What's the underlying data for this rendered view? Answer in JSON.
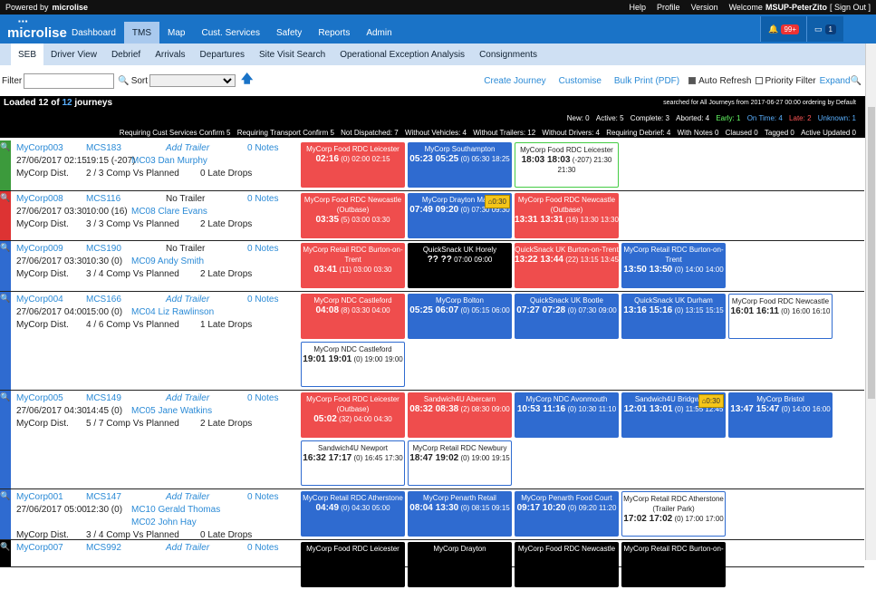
{
  "topbar": {
    "powered": "Powered by",
    "brand_small": "microlise",
    "help": "Help",
    "profile": "Profile",
    "version": "Version",
    "welcome": "Welcome",
    "user": "MSUP-PeterZito",
    "signout": "[ Sign Out ]"
  },
  "nav": {
    "brand": "microlise",
    "tabs": [
      "Dashboard",
      "TMS",
      "Map",
      "Cust. Services",
      "Safety",
      "Reports",
      "Admin"
    ],
    "alerts": "99+",
    "messages": "1"
  },
  "subnav": [
    "SEB",
    "Driver View",
    "Debrief",
    "Arrivals",
    "Departures",
    "Site Visit Search",
    "Operational Exception Analysis",
    "Consignments"
  ],
  "filter": {
    "label": "Filter",
    "sort": "Sort",
    "create": "Create Journey",
    "customise": "Customise",
    "bulk": "Bulk Print (PDF)",
    "auto": "Auto Refresh",
    "priority": "Priority Filter",
    "expand": "Expand"
  },
  "summary": {
    "loaded": "Loaded 12 of",
    "total": "12",
    "journeys": "journeys",
    "searched": "searched for All Journeys from 2017-06-27 00:00 ordering by Default",
    "stats": [
      "New: 0",
      "Active: 5",
      "Complete: 3",
      "Aborted: 4",
      "Early: 1",
      "On Time: 4",
      "Late: 2",
      "Unknown: 1"
    ],
    "reqs": [
      "Requiring Cust Services Confirm 5",
      "Requiring Transport Confirm 5",
      "Not Dispatched: 7",
      "Without Vehicles: 4",
      "Without Trailers: 12",
      "Without Drivers: 4",
      "Requiring Debrief: 4",
      "With Notes 0",
      "Claused 0",
      "Tagged 0",
      "Active Updated 0"
    ]
  },
  "journeys": [
    {
      "id": "MyCorp003",
      "veh": "MCS183",
      "trailer": "Add Trailer",
      "notes": "0 Notes",
      "date": "27/06/2017 02:15",
      "time": "19:15 (-207)",
      "driver": "MC03 Dan Murphy",
      "co": "MyCorp Dist.",
      "comp": "2 / 3 Comp Vs Planned",
      "drops": "0 Late Drops",
      "strip": "#3c9a3c",
      "h": 56,
      "stops": [
        {
          "c": "red",
          "n": "MyCorp Food RDC Leicester",
          "t": "02:16",
          "s": "(0) 02:00 02:15"
        },
        {
          "c": "blue",
          "n": "MyCorp Southampton",
          "t": "05:23 05:25",
          "s": "(0) 05:30 18:25"
        },
        {
          "c": "wgreen",
          "n": "MyCorp Food RDC Leicester",
          "t": "18:03 18:03",
          "s": "(-207) 21:30 21:30"
        }
      ]
    },
    {
      "id": "MyCorp008",
      "veh": "MCS116",
      "trailer": "No Trailer",
      "notes": "0 Notes",
      "date": "27/06/2017 03:30",
      "time": "10:00 (16)",
      "driver": "MC08 Clare Evans",
      "co": "MyCorp Dist.",
      "comp": "3 / 3 Comp Vs Planned",
      "drops": "2 Late Drops",
      "strip": "#d33",
      "h": 55,
      "stops": [
        {
          "c": "red",
          "n": "MyCorp Food RDC Newcastle (Outbase)",
          "t": "03:35",
          "s": "(5) 03:00 03:30"
        },
        {
          "c": "blue",
          "n": "MyCorp Drayton Manor",
          "t": "07:49 09:20",
          "s": "(0) 07:30 09:30",
          "d": "0:30"
        },
        {
          "c": "red",
          "n": "MyCorp Food RDC Newcastle (Outbase)",
          "t": "13:31 13:31",
          "s": "(16) 13:30 13:30"
        }
      ]
    },
    {
      "id": "MyCorp009",
      "veh": "MCS190",
      "trailer": "No Trailer",
      "notes": "0 Notes",
      "date": "27/06/2017 03:30",
      "time": "10:30 (0)",
      "driver": "MC09 Andy Smith",
      "co": "MyCorp Dist.",
      "comp": "3 / 4 Comp Vs Planned",
      "drops": "2 Late Drops",
      "strip": "#2f6bd0",
      "h": 56,
      "stops": [
        {
          "c": "red",
          "n": "MyCorp Retail RDC Burton-on-Trent",
          "t": "03:41",
          "s": "(11) 03:00 03:30"
        },
        {
          "c": "black",
          "n": "QuickSnack UK Horely",
          "t": "?? ??",
          "s": "07:00 09:00"
        },
        {
          "c": "red",
          "n": "QuickSnack UK Burton-on-Trent",
          "t": "13:22 13:44",
          "s": "(22) 13:15 13:45"
        },
        {
          "c": "blue",
          "n": "MyCorp Retail RDC Burton-on-Trent",
          "t": "13:50 13:50",
          "s": "(0) 14:00 14:00"
        }
      ]
    },
    {
      "id": "MyCorp004",
      "veh": "MCS166",
      "trailer": "Add Trailer",
      "notes": "0 Notes",
      "date": "27/06/2017 04:00",
      "time": "15:00 (0)",
      "driver": "MC04 Liz Rawlinson",
      "co": "MyCorp Dist.",
      "comp": "4 / 6 Comp Vs Planned",
      "drops": "1 Late Drops",
      "strip": "#2f6bd0",
      "h": 109,
      "stops": [
        {
          "c": "red",
          "n": "MyCorp NDC Castleford",
          "t": "04:08",
          "s": "(8) 03:30 04:00"
        },
        {
          "c": "blue",
          "n": "MyCorp Bolton",
          "t": "05:25 06:07",
          "s": "(0) 05:15 06:00"
        },
        {
          "c": "blue",
          "n": "QuickSnack UK Bootle",
          "t": "07:27 07:28",
          "s": "(0) 07:30 09:00"
        },
        {
          "c": "blue",
          "n": "QuickSnack UK Durham",
          "t": "13:16 15:16",
          "s": "(0) 13:15 15:15"
        },
        {
          "c": "white",
          "n": "MyCorp Food RDC Newcastle",
          "t": "16:01 16:11",
          "s": "(0) 16:00 16:10"
        },
        {
          "c": "white",
          "n": "MyCorp NDC Castleford",
          "t": "19:01 19:01",
          "s": "(0) 19:00 19:00"
        }
      ]
    },
    {
      "id": "MyCorp005",
      "veh": "MCS149",
      "trailer": "Add Trailer",
      "notes": "0 Notes",
      "date": "27/06/2017 04:30",
      "time": "14:45 (0)",
      "driver": "MC05 Jane Watkins",
      "co": "MyCorp Dist.",
      "comp": "5 / 7 Comp Vs Planned",
      "drops": "2 Late Drops",
      "strip": "#2f6bd0",
      "h": 109,
      "stops": [
        {
          "c": "red",
          "n": "MyCorp Food RDC Leicester (Outbase)",
          "t": "05:02",
          "s": "(32) 04:00 04:30"
        },
        {
          "c": "red",
          "n": "Sandwich4U Abercarn",
          "t": "08:32 08:38",
          "s": "(2) 08:30 09:00"
        },
        {
          "c": "blue",
          "n": "MyCorp NDC Avonmouth",
          "t": "10:53 11:16",
          "s": "(0) 10:30 11:10"
        },
        {
          "c": "blue",
          "n": "Sandwich4U Bridgwater",
          "t": "12:01 13:01",
          "s": "(0) 11:55 12:45",
          "d": "0:30"
        },
        {
          "c": "blue",
          "n": "MyCorp Bristol",
          "t": "13:47 15:47",
          "s": "(0) 14:00 16:00"
        },
        {
          "c": "white",
          "n": "Sandwich4U Newport",
          "t": "16:32 17:17",
          "s": "(0) 16:45 17:30"
        },
        {
          "c": "white",
          "n": "MyCorp Retail RDC Newbury",
          "t": "18:47 19:02",
          "s": "(0) 19:00 19:15"
        }
      ]
    },
    {
      "id": "MyCorp001",
      "veh": "MCS147",
      "trailer": "Add Trailer",
      "notes": "0 Notes",
      "date": "27/06/2017 05:00",
      "time": "12:30 (0)",
      "driver": "MC10 Gerald Thomas",
      "driver2": "MC02 John Hay",
      "co": "MyCorp Dist.",
      "comp": "3 / 4 Comp Vs Planned",
      "drops": "0 Late Drops",
      "strip": "#2f6bd0",
      "h": 56,
      "stops": [
        {
          "c": "blue",
          "n": "MyCorp Retail RDC Atherstone",
          "t": "04:49",
          "s": "(0) 04:30 05:00"
        },
        {
          "c": "blue",
          "n": "MyCorp Penarth Retail",
          "t": "08:04 13:30",
          "s": "(0) 08:15 09:15"
        },
        {
          "c": "blue",
          "n": "MyCorp Penarth Food Court",
          "t": "09:17 10:20",
          "s": "(0) 09:20 11:20"
        },
        {
          "c": "white",
          "n": "MyCorp Retail RDC Atherstone (Trailer Park)",
          "t": "17:02 17:02",
          "s": "(0) 17:00 17:00"
        }
      ]
    },
    {
      "id": "MyCorp007",
      "veh": "MCS992",
      "trailer": "Add Trailer",
      "notes": "0 Notes",
      "date": "",
      "time": "",
      "driver": "",
      "co": "",
      "comp": "",
      "drops": "",
      "strip": "#000",
      "h": 30,
      "stops": [
        {
          "c": "black",
          "n": "MyCorp Food RDC Leicester",
          "t": "",
          "s": ""
        },
        {
          "c": "black",
          "n": "MyCorp Drayton",
          "t": "",
          "s": ""
        },
        {
          "c": "black",
          "n": "MyCorp Food RDC Newcastle",
          "t": "",
          "s": ""
        },
        {
          "c": "black",
          "n": "MyCorp Retail RDC Burton-on-",
          "t": "",
          "s": ""
        }
      ]
    }
  ]
}
